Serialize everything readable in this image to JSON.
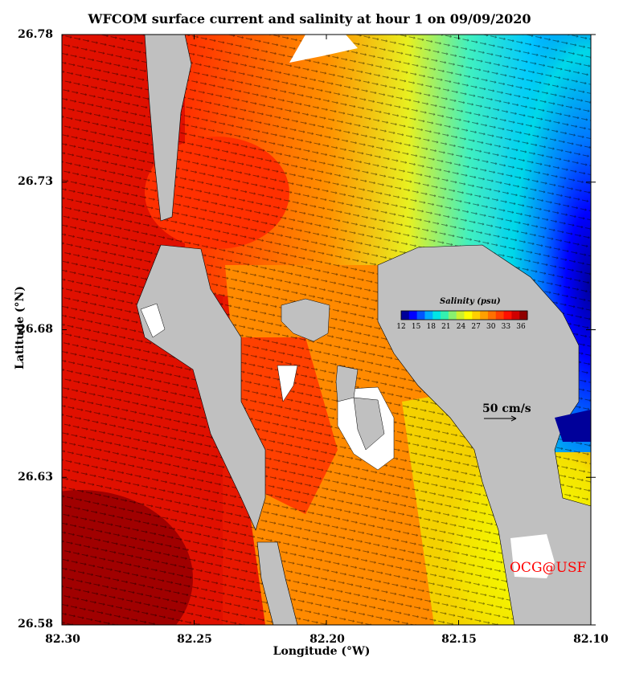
{
  "title": "WFCOM surface current and salinity at hour 1 on 09/09/2020",
  "xlabel": "Longitude (°W)",
  "ylabel": "Latitude (°N)",
  "x_ticks": [
    "82.30",
    "82.25",
    "82.20",
    "82.15",
    "82.10"
  ],
  "y_ticks": [
    "26.78",
    "26.73",
    "26.68",
    "26.63",
    "26.58"
  ],
  "x_range": [
    82.3,
    82.1
  ],
  "y_range": [
    26.58,
    26.78
  ],
  "colorbar": {
    "title": "Salinity (psu)",
    "ticks": [
      "12",
      "15",
      "18",
      "21",
      "24",
      "27",
      "30",
      "33",
      "36"
    ],
    "range": [
      12,
      36
    ],
    "colors": [
      "#00009a",
      "#0000ff",
      "#0055ff",
      "#00aaff",
      "#00e5e5",
      "#33f0b0",
      "#88f070",
      "#ccf030",
      "#ffff00",
      "#ffd000",
      "#ffa000",
      "#ff7000",
      "#ff4000",
      "#ff1000",
      "#d00000",
      "#900000"
    ]
  },
  "scale_vector_label": "50 cm/s",
  "credit": "OCG@USF",
  "colors": {
    "land": "#c0c0c0",
    "credit": "#ff0000"
  }
}
